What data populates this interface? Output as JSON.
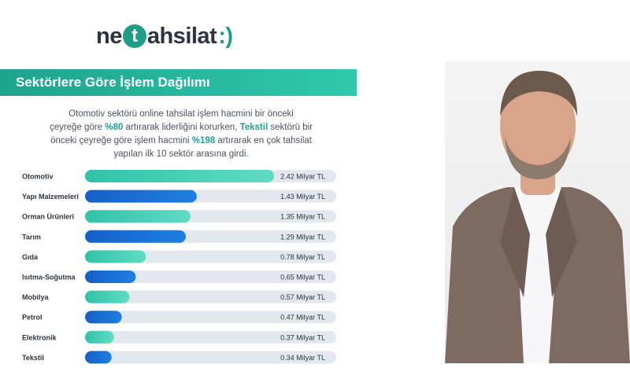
{
  "brand": {
    "logo_pre": "ne",
    "logo_t": "t",
    "logo_post": "ahsilat",
    "logo_suffix": ":)",
    "accent": "#1f9e87",
    "dark": "#2c3440"
  },
  "banner": {
    "title": "Sektörlere Göre İşlem Dağılımı"
  },
  "description": {
    "l1": "Otomotiv sektörü online tahsilat işlem hacmini bir önceki",
    "l2a": "çeyreğe göre ",
    "l2b": "%80",
    "l2c": " artırarak liderliğini korurken, ",
    "l2d": "Tekstil",
    "l2e": " sektörü bir",
    "l3a": "önceki çeyreğe göre işlem hacmini ",
    "l3b": "%198",
    "l3c": " artırarak en çok tahsilat",
    "l4": "yapılan ilk 10 sektör arasına girdi."
  },
  "chart_data": {
    "type": "bar",
    "orientation": "horizontal",
    "categories": [
      "Otomotiv",
      "Yapı Malzemeleri",
      "Orman Ürünleri",
      "Tarım",
      "Gıda",
      "Isıtma-Soğutma",
      "Mobilya",
      "Petrol",
      "Elektronik",
      "Tekstil"
    ],
    "values": [
      2.42,
      1.43,
      1.35,
      1.29,
      0.78,
      0.65,
      0.57,
      0.47,
      0.37,
      0.34
    ],
    "value_labels": [
      "2.42 Milyar TL",
      "1.43 Milyar TL",
      "1.35 Milyar TL",
      "1.29 Milyar TL",
      "0.78 Milyar TL",
      "0.65 Milyar TL",
      "0.57 Milyar TL",
      "0.47 Milyar TL",
      "0.37 Milyar TL",
      "0.34 Milyar TL"
    ],
    "title": "",
    "xlabel": "",
    "ylabel": "",
    "colors": {
      "teal": "#2fc3a8",
      "blue": "#1560c8",
      "track": "#e3e8ee"
    }
  },
  "photo": {
    "colors": {
      "jacket": "#7d6a61",
      "shirt": "#f7f7f9",
      "skin": "#d8a58a",
      "hair": "#6b5a4c"
    }
  }
}
